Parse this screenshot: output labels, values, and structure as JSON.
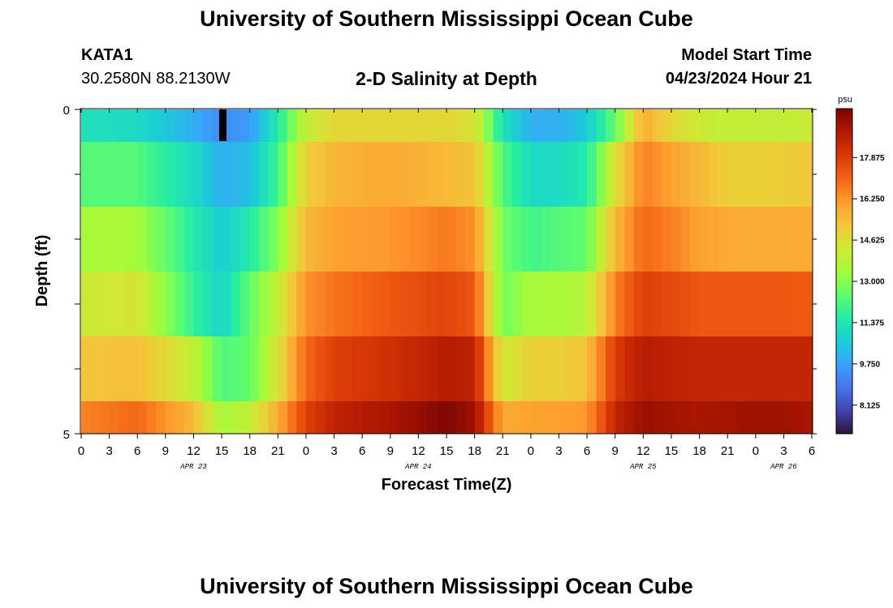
{
  "header": {
    "title": "University of Southern Mississippi Ocean Cube",
    "station": "KATA1",
    "coordinates": "30.2580N  88.2130W",
    "subtitle": "2-D Salinity at Depth",
    "model_start_label": "Model Start Time",
    "model_start_time": "04/23/2024 Hour 21"
  },
  "footer": {
    "title": "University of Southern Mississippi Ocean Cube"
  },
  "colors": {
    "scale": [
      "#30123b",
      "#4145ab",
      "#4675ed",
      "#39a2fc",
      "#1bcfd4",
      "#24eca6",
      "#61fc6c",
      "#a4fc3b",
      "#d1e834",
      "#f3c63a",
      "#fe9b2d",
      "#f36315",
      "#d93806",
      "#b11901",
      "#7a0402"
    ]
  },
  "chart_data": {
    "type": "heatmap",
    "title": "2-D Salinity at Depth",
    "xlabel": "Forecast Time(Z)",
    "ylabel": "Depth (ft)",
    "x_tick_labels": [
      "0",
      "3",
      "6",
      "9",
      "12",
      "15",
      "18",
      "21",
      "0",
      "3",
      "6",
      "9",
      "12",
      "15",
      "18",
      "21",
      "0",
      "3",
      "6",
      "9",
      "12",
      "15",
      "18",
      "21",
      "0",
      "3",
      "6"
    ],
    "date_labels": [
      {
        "label": "APR 23",
        "tick": 4
      },
      {
        "label": "APR 24",
        "tick": 12
      },
      {
        "label": "APR 25",
        "tick": 20
      },
      {
        "label": "APR 26",
        "tick": 25
      }
    ],
    "y_tick_labels": [
      "0",
      "5"
    ],
    "ylim": [
      0,
      5
    ],
    "colorbar": {
      "unit": "psu",
      "min": 7.0,
      "max": 19.8,
      "tick_values": [
        8.125,
        9.75,
        11.375,
        13.0,
        14.625,
        16.25,
        17.875
      ],
      "tick_labels": [
        "8.125",
        "9.750",
        "11.375",
        "13.000",
        "14.625",
        "16.250",
        "17.875"
      ]
    },
    "time_hours": [
      0,
      6,
      12,
      15,
      18,
      21,
      24,
      27,
      33,
      39,
      42,
      45,
      48,
      51,
      54,
      57,
      60,
      63,
      66,
      69,
      72,
      75,
      78
    ],
    "depth_rows": [
      "0-0.5 ft",
      "0.5-1.5 ft",
      "1.5-2.5 ft",
      "2.5-3.5 ft",
      "3.5-4.5 ft",
      "4.5-5 ft"
    ],
    "salinity_psu": [
      [
        11.2,
        11.0,
        10.0,
        9.3,
        9.6,
        11.5,
        14.0,
        14.8,
        14.8,
        14.8,
        14.5,
        11.2,
        10.0,
        10.0,
        10.6,
        12.5,
        15.8,
        14.8,
        14.2,
        14.0,
        14.0,
        14.0,
        14.2
      ],
      [
        12.3,
        12.3,
        11.0,
        10.0,
        10.3,
        12.0,
        15.0,
        15.6,
        15.8,
        15.5,
        15.3,
        12.2,
        11.0,
        11.0,
        11.5,
        14.5,
        16.6,
        16.0,
        15.5,
        15.0,
        15.0,
        15.0,
        15.2
      ],
      [
        13.5,
        13.5,
        11.5,
        10.6,
        11.5,
        13.0,
        15.5,
        16.0,
        16.2,
        16.7,
        16.3,
        12.7,
        12.0,
        12.3,
        12.5,
        15.5,
        17.0,
        16.6,
        16.0,
        15.8,
        15.8,
        15.8,
        15.8
      ],
      [
        14.2,
        14.4,
        11.8,
        10.8,
        12.5,
        14.0,
        16.3,
        16.8,
        17.3,
        17.7,
        17.3,
        12.7,
        13.5,
        13.5,
        13.8,
        16.6,
        17.8,
        17.6,
        17.3,
        17.3,
        17.3,
        17.3,
        17.2
      ],
      [
        15.2,
        15.4,
        14.0,
        12.2,
        12.5,
        14.5,
        17.0,
        17.8,
        18.2,
        18.8,
        18.6,
        14.2,
        15.0,
        15.0,
        15.3,
        17.9,
        18.8,
        18.6,
        18.5,
        18.5,
        18.5,
        18.5,
        18.5
      ],
      [
        16.5,
        17.0,
        15.5,
        13.5,
        14.0,
        15.8,
        17.8,
        18.6,
        19.0,
        19.7,
        19.2,
        15.8,
        16.0,
        16.0,
        16.2,
        18.5,
        19.3,
        19.1,
        19.0,
        19.1,
        19.2,
        19.2,
        19.0
      ]
    ]
  }
}
